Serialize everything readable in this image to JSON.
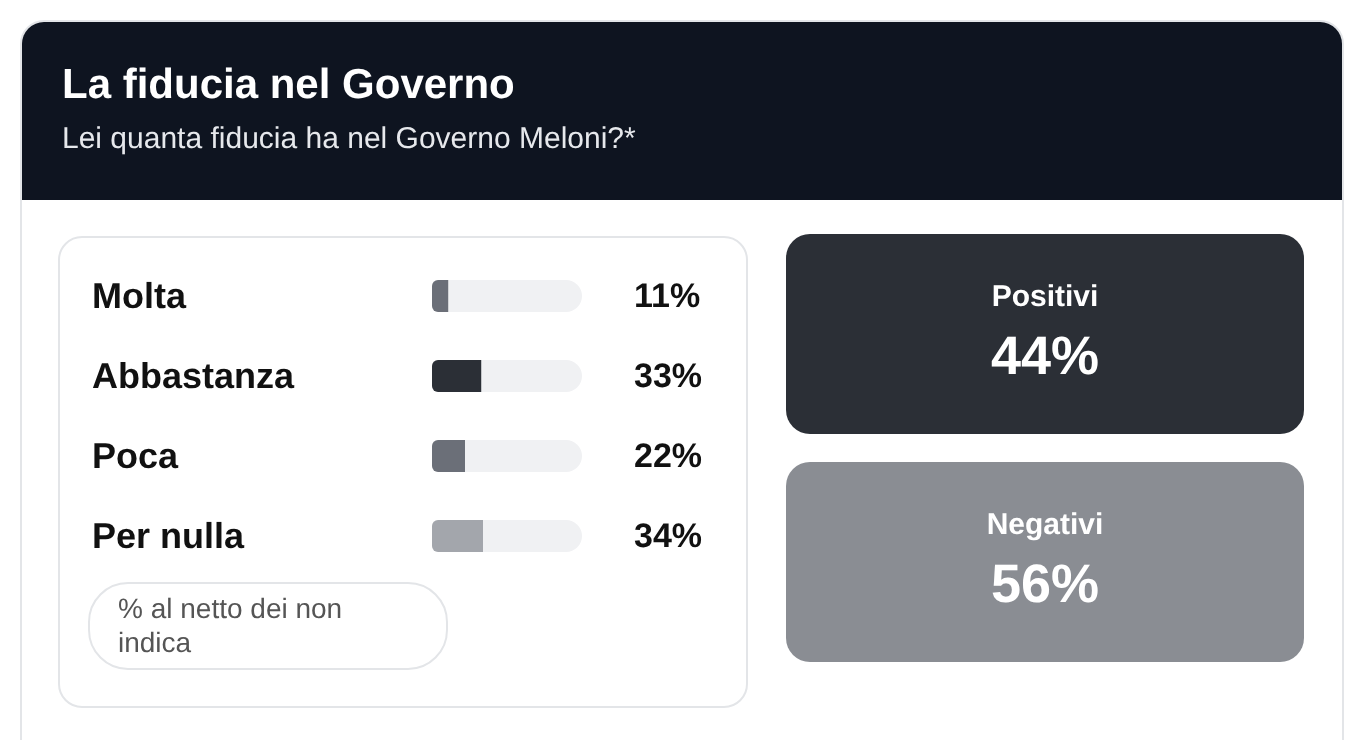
{
  "chart_data": [
    {
      "type": "bar",
      "orientation": "horizontal",
      "stacked": true,
      "title": "La fiducia nel Governo",
      "subtitle": "Lei quanta fiducia ha nel Governo Meloni?*",
      "categories": [
        "Molta",
        "Abbastanza",
        "Poca",
        "Per nulla"
      ],
      "series": [
        {
          "colors": [
            "#6b6f78",
            "#2b2f36",
            "#6b6f78",
            "#a3a6ac"
          ],
          "values": [
            11,
            33,
            22,
            34
          ],
          "value_labels": [
            "11%",
            "33%",
            "22%",
            "34%"
          ]
        },
        {
          "color": "#f0f1f3",
          "values": [
            89,
            67,
            78,
            66
          ]
        }
      ],
      "tick_labels": "y",
      "annotations": [
        "% al netto dei non indica"
      ]
    },
    {
      "type": "other",
      "categories": [
        "Positivi",
        "Negativi"
      ],
      "value_labels": [
        "44%",
        "56%"
      ],
      "colors": [
        "#2b2f36",
        "#8a8d93"
      ]
    }
  ]
}
